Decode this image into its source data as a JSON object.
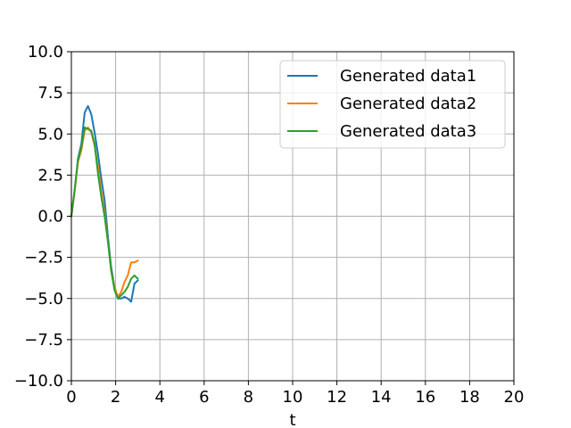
{
  "chart_data": {
    "type": "line",
    "title": "",
    "xlabel": "t",
    "ylabel": "",
    "xlim": [
      0,
      20
    ],
    "ylim": [
      -10,
      10
    ],
    "xticks": [
      0,
      2,
      4,
      6,
      8,
      10,
      12,
      14,
      16,
      18,
      20
    ],
    "xtick_labels": [
      "0",
      "2",
      "4",
      "6",
      "8",
      "10",
      "12",
      "14",
      "16",
      "18",
      "20"
    ],
    "yticks": [
      -10,
      -7.5,
      -5,
      -2.5,
      0,
      2.5,
      5,
      7.5,
      10
    ],
    "ytick_labels": [
      "−10.0",
      "−7.5",
      "−5.0",
      "−2.5",
      "0.0",
      "2.5",
      "5.0",
      "7.5",
      "10.0"
    ],
    "grid": true,
    "legend_position": "top-right",
    "series": [
      {
        "name": "Generated data1",
        "color": "#1f77b4",
        "x": [
          0.0,
          0.15,
          0.3,
          0.45,
          0.6,
          0.75,
          0.9,
          1.05,
          1.2,
          1.35,
          1.5,
          1.65,
          1.8,
          1.95,
          2.1,
          2.25,
          2.4,
          2.55,
          2.7,
          2.85,
          3.0
        ],
        "y": [
          0.0,
          1.6,
          3.5,
          4.4,
          6.3,
          6.7,
          6.2,
          5.1,
          3.8,
          2.3,
          1.0,
          -1.2,
          -3.1,
          -4.3,
          -5.0,
          -5.0,
          -4.9,
          -5.0,
          -5.2,
          -4.1,
          -3.9
        ]
      },
      {
        "name": "Generated data2",
        "color": "#ff7f0e",
        "x": [
          0.0,
          0.15,
          0.3,
          0.45,
          0.6,
          0.75,
          0.9,
          1.05,
          1.2,
          1.35,
          1.5,
          1.65,
          1.8,
          1.95,
          2.1,
          2.25,
          2.4,
          2.55,
          2.7,
          2.85,
          3.0
        ],
        "y": [
          0.0,
          1.5,
          3.3,
          4.0,
          5.2,
          5.4,
          5.1,
          4.3,
          3.0,
          1.5,
          0.2,
          -1.5,
          -3.3,
          -4.3,
          -4.9,
          -4.6,
          -4.0,
          -3.6,
          -2.8,
          -2.8,
          -2.7
        ]
      },
      {
        "name": "Generated data3",
        "color": "#2ca02c",
        "x": [
          0.0,
          0.15,
          0.3,
          0.45,
          0.6,
          0.75,
          0.9,
          1.05,
          1.2,
          1.35,
          1.5,
          1.65,
          1.8,
          1.95,
          2.1,
          2.25,
          2.4,
          2.55,
          2.7,
          2.85,
          3.0
        ],
        "y": [
          0.0,
          1.6,
          3.4,
          4.2,
          5.4,
          5.3,
          5.2,
          4.4,
          2.6,
          1.2,
          0.0,
          -1.5,
          -3.3,
          -4.5,
          -5.0,
          -4.8,
          -4.6,
          -4.3,
          -3.8,
          -3.6,
          -3.8
        ]
      }
    ]
  }
}
